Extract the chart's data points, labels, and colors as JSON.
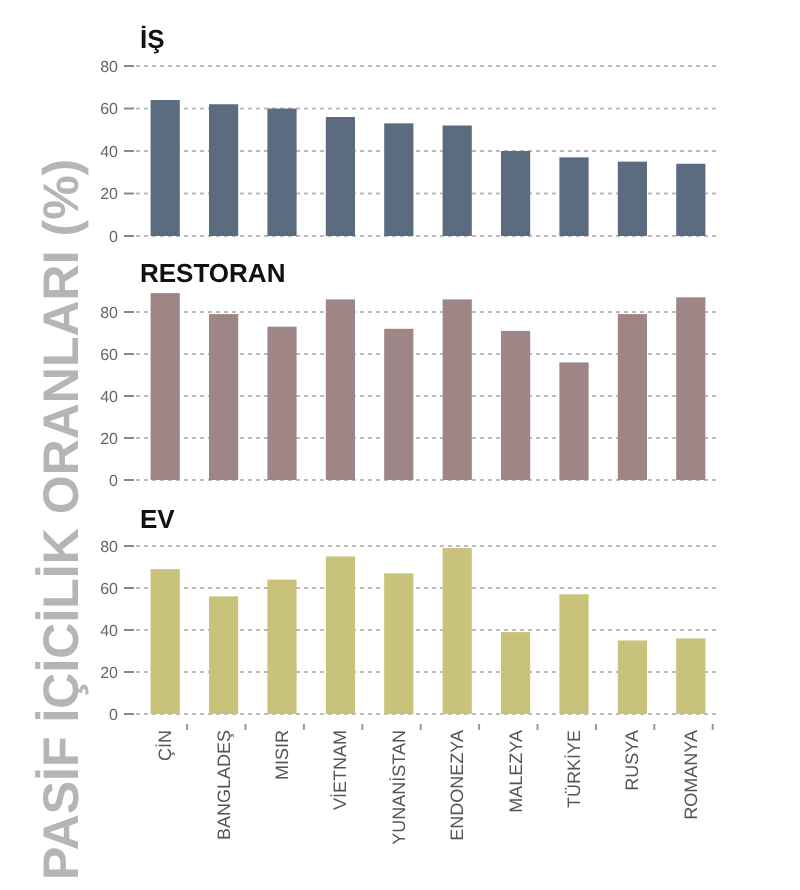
{
  "chart_data": [
    {
      "type": "bar",
      "title": "İŞ",
      "ylabel": "PASİF İÇİCİLİK ORANLARI (%)",
      "values": [
        64,
        62,
        60,
        56,
        53,
        52,
        40,
        37,
        35,
        34
      ],
      "color": "#5b6b80",
      "ylim": [
        0,
        80
      ],
      "yticks": [
        0,
        20,
        40,
        60,
        80
      ],
      "grid": "y",
      "tick_labels": "y"
    },
    {
      "type": "bar",
      "title": "RESTORAN",
      "values": [
        89,
        79,
        73,
        86,
        72,
        86,
        71,
        56,
        79,
        87
      ],
      "color": "#9e8686",
      "ylim": [
        0,
        90
      ],
      "yticks": [
        0,
        20,
        40,
        60,
        80
      ],
      "grid": "y",
      "tick_labels": "y"
    },
    {
      "type": "bar",
      "title": "EV",
      "categories": [
        "ÇİN",
        "BANGLADEŞ",
        "MISIR",
        "VİETNAM",
        "YUNANİSTAN",
        "ENDONEZYA",
        "MALEZYA",
        "TÜRKİYE",
        "RUSYA",
        "ROMANYA"
      ],
      "values": [
        69,
        56,
        64,
        75,
        67,
        79,
        39,
        57,
        35,
        36
      ],
      "color": "#c8c27a",
      "ylim": [
        0,
        80
      ],
      "yticks": [
        0,
        20,
        40,
        60,
        80
      ],
      "grid": "y"
    }
  ]
}
